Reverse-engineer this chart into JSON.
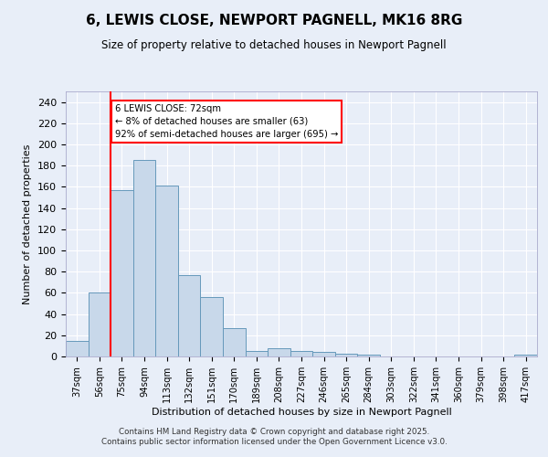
{
  "title": "6, LEWIS CLOSE, NEWPORT PAGNELL, MK16 8RG",
  "subtitle": "Size of property relative to detached houses in Newport Pagnell",
  "xlabel": "Distribution of detached houses by size in Newport Pagnell",
  "ylabel": "Number of detached properties",
  "categories": [
    "37sqm",
    "56sqm",
    "75sqm",
    "94sqm",
    "113sqm",
    "132sqm",
    "151sqm",
    "170sqm",
    "189sqm",
    "208sqm",
    "227sqm",
    "246sqm",
    "265sqm",
    "284sqm",
    "303sqm",
    "322sqm",
    "341sqm",
    "360sqm",
    "379sqm",
    "398sqm",
    "417sqm"
  ],
  "values": [
    15,
    60,
    157,
    185,
    161,
    77,
    56,
    27,
    5,
    8,
    5,
    4,
    3,
    2,
    0,
    0,
    0,
    0,
    0,
    0,
    2
  ],
  "bar_color": "#c8d8ea",
  "bar_edge_color": "#6699bb",
  "vline_color": "red",
  "annotation_text": "6 LEWIS CLOSE: 72sqm\n← 8% of detached houses are smaller (63)\n92% of semi-detached houses are larger (695) →",
  "ylim": [
    0,
    250
  ],
  "yticks": [
    0,
    20,
    40,
    60,
    80,
    100,
    120,
    140,
    160,
    180,
    200,
    220,
    240
  ],
  "background_color": "#e8eef8",
  "grid_color": "#ffffff",
  "footer_line1": "Contains HM Land Registry data © Crown copyright and database right 2025.",
  "footer_line2": "Contains public sector information licensed under the Open Government Licence v3.0."
}
